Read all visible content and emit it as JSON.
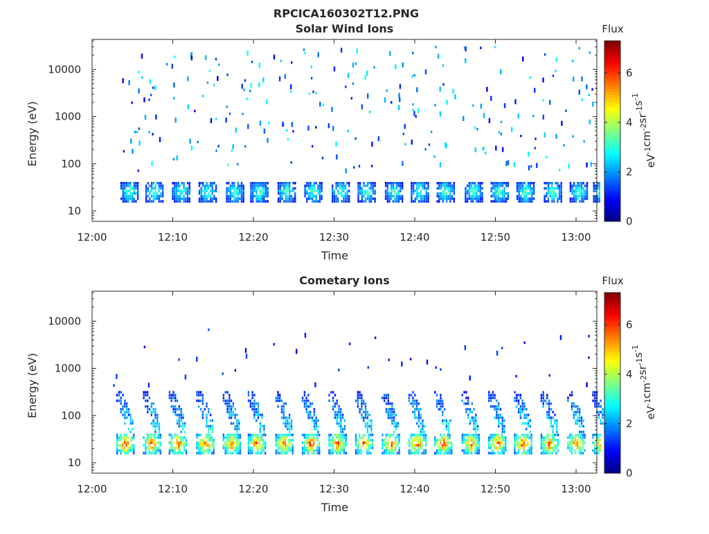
{
  "figure_title": "RPCICA160302T12.PNG",
  "colormap": [
    "#00007f",
    "#0000ff",
    "#007fff",
    "#00ffff",
    "#7fff7f",
    "#ffff00",
    "#ff7f00",
    "#ff0000",
    "#7f0000"
  ],
  "chart_data": [
    {
      "type": "heatmap",
      "title": "Solar Wind Ions",
      "xlabel": "Time",
      "ylabel": "Energy (eV)",
      "x_ticks": [
        "12:00",
        "12:10",
        "12:20",
        "12:30",
        "12:40",
        "12:50",
        "13:00"
      ],
      "x_range_minutes": [
        0,
        63
      ],
      "y_scale": "log",
      "y_ticks": [
        "10",
        "100",
        "1000",
        "10000"
      ],
      "y_range": [
        6,
        45000
      ],
      "colorbar": {
        "title": "Flux",
        "label": "eV-1cm-2sr-1s-1",
        "ticks": [
          "0",
          "2",
          "4",
          "6"
        ],
        "range": [
          0,
          7.3
        ]
      },
      "main_band": {
        "energy_range": [
          16,
          40
        ],
        "peak_flux": 3.8
      },
      "scatter_energy_range": [
        70,
        30000
      ],
      "scatter_flux_range": [
        0.8,
        3.0
      ],
      "sweep_start_minutes": [
        3.5,
        6.6,
        9.9,
        13.2,
        16.6,
        19.6,
        23.0,
        26.3,
        29.7,
        32.9,
        36.3,
        39.5,
        42.7,
        46.2,
        49.4,
        52.6,
        56.0,
        59.2,
        62.1
      ]
    },
    {
      "type": "heatmap",
      "title": "Cometary Ions",
      "xlabel": "Time",
      "ylabel": "Energy (eV)",
      "x_ticks": [
        "12:00",
        "12:10",
        "12:20",
        "12:30",
        "12:40",
        "12:50",
        "13:00"
      ],
      "x_range_minutes": [
        0,
        63
      ],
      "y_scale": "log",
      "y_ticks": [
        "10",
        "100",
        "1000",
        "10000"
      ],
      "y_range": [
        6,
        45000
      ],
      "colorbar": {
        "title": "Flux",
        "label": "eV-1cm-2sr-1s-1",
        "ticks": [
          "0",
          "2",
          "4",
          "6"
        ],
        "range": [
          0,
          7.3
        ]
      },
      "main_band": {
        "energy_range": [
          16,
          40
        ],
        "peak_flux": 6.5
      },
      "secondary_band": {
        "energy_range": [
          45,
          350
        ],
        "peak_flux": 3.0
      },
      "scatter_energy_range": [
        400,
        8000
      ],
      "scatter_flux_range": [
        0.8,
        1.5
      ],
      "sweep_start_minutes": [
        3.0,
        6.3,
        9.5,
        12.9,
        16.2,
        19.3,
        22.7,
        26.0,
        29.3,
        32.6,
        35.9,
        39.2,
        42.4,
        45.8,
        49.1,
        52.3,
        55.6,
        58.9,
        62.0
      ]
    }
  ]
}
